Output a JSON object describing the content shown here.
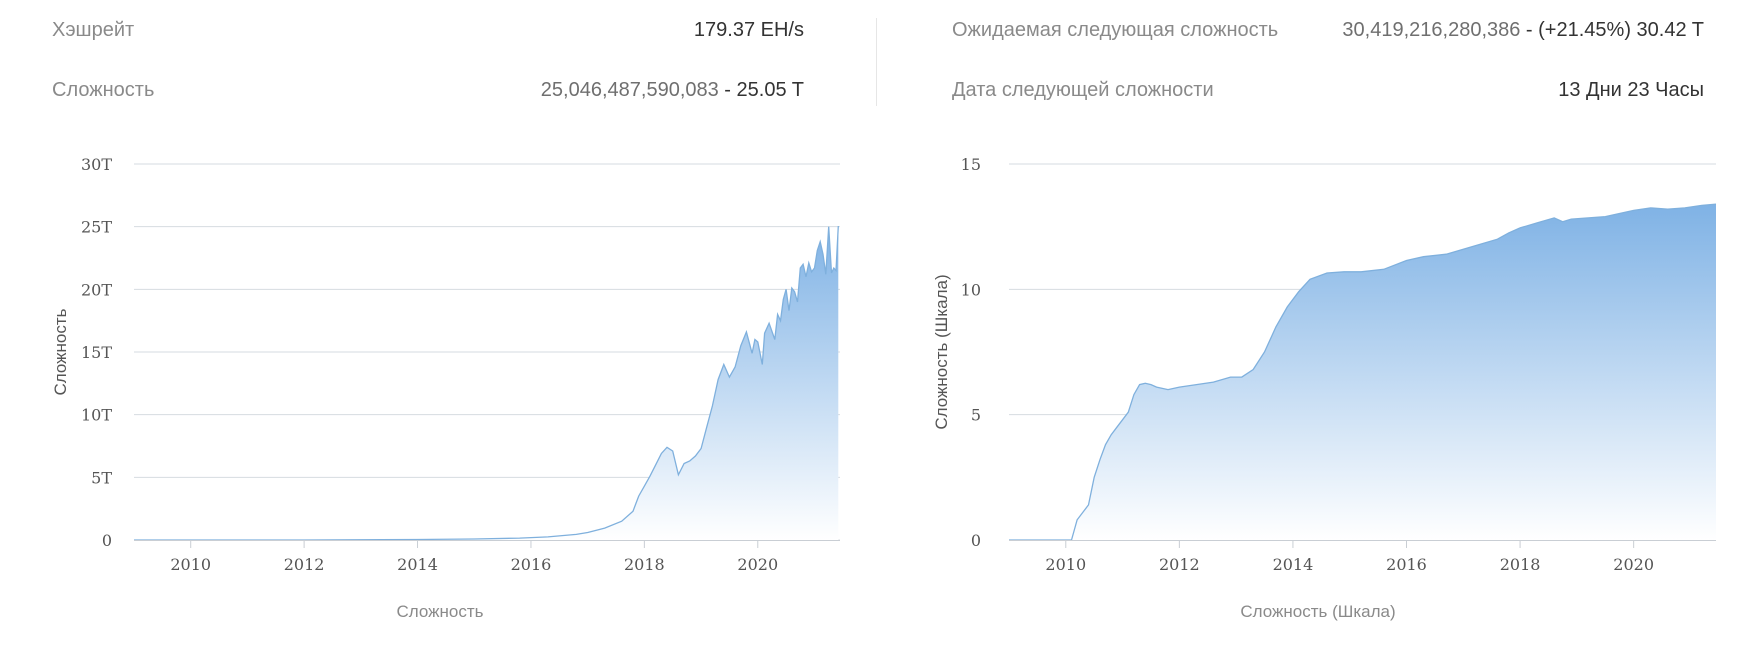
{
  "stats": {
    "hashrate": {
      "label": "Хэшрейт",
      "value": "179.37 EH/s"
    },
    "difficulty": {
      "label": "Сложность",
      "value_num": "25,046,487,590,083",
      "value_sep": " - ",
      "value_short": "25.05 T"
    },
    "next_difficulty": {
      "label": "Ожидаемая следующая сложность",
      "value_num": "30,419,216,280,386",
      "value_rest": " - (+21.45%) 30.42 T"
    },
    "next_date": {
      "label": "Дата следующей сложности",
      "value": "13 Дни 23 Часы"
    }
  },
  "colors": {
    "line": "#7fb0dd",
    "fill_top": "#7fb2e5",
    "fill_bottom": "#ffffff",
    "grid": "#d6dbe1"
  },
  "chart_data": [
    {
      "type": "area",
      "xlabel": "Сложность",
      "ylabel": "Сложность",
      "xlim": [
        2009.0,
        2021.45
      ],
      "ylim": [
        0,
        30
      ],
      "x_ticks": [
        "2010",
        "2012",
        "2014",
        "2016",
        "2018",
        "2020"
      ],
      "y_ticks": [
        "0",
        "5T",
        "10T",
        "15T",
        "20T",
        "25T",
        "30T"
      ],
      "grid": true,
      "x": [
        2009.0,
        2012.0,
        2014.0,
        2015.0,
        2015.8,
        2016.3,
        2016.8,
        2017.0,
        2017.3,
        2017.6,
        2017.8,
        2017.9,
        2018.0,
        2018.1,
        2018.2,
        2018.3,
        2018.4,
        2018.5,
        2018.6,
        2018.7,
        2018.8,
        2018.9,
        2019.0,
        2019.1,
        2019.2,
        2019.3,
        2019.4,
        2019.5,
        2019.6,
        2019.7,
        2019.8,
        2019.9,
        2019.95,
        2020.0,
        2020.08,
        2020.12,
        2020.2,
        2020.3,
        2020.35,
        2020.4,
        2020.45,
        2020.5,
        2020.55,
        2020.6,
        2020.65,
        2020.7,
        2020.75,
        2020.8,
        2020.85,
        2020.9,
        2020.95,
        2021.0,
        2021.05,
        2021.1,
        2021.15,
        2021.2,
        2021.25,
        2021.3,
        2021.34,
        2021.38,
        2021.42
      ],
      "y": [
        0.0,
        0.0,
        0.04,
        0.08,
        0.15,
        0.25,
        0.45,
        0.6,
        0.95,
        1.5,
        2.3,
        3.5,
        4.3,
        5.1,
        6.0,
        6.9,
        7.4,
        7.1,
        5.2,
        6.1,
        6.3,
        6.7,
        7.3,
        9.0,
        10.7,
        12.8,
        14.0,
        13.0,
        13.8,
        15.5,
        16.6,
        14.9,
        16.0,
        15.8,
        14.0,
        16.5,
        17.3,
        16.0,
        18.0,
        17.5,
        19.2,
        20.0,
        18.3,
        20.1,
        19.8,
        19.0,
        21.7,
        22.0,
        21.0,
        22.1,
        21.4,
        21.7,
        23.1,
        23.8,
        22.8,
        21.2,
        25.0,
        21.3,
        21.7,
        21.5,
        25.05
      ]
    },
    {
      "type": "area",
      "xlabel": "Сложность (Шкала)",
      "ylabel": "Сложность (Шкала)",
      "xlim": [
        2009.0,
        2021.45
      ],
      "ylim": [
        0,
        15
      ],
      "x_ticks": [
        "2010",
        "2012",
        "2014",
        "2016",
        "2018",
        "2020"
      ],
      "y_ticks": [
        "0",
        "5",
        "10",
        "15"
      ],
      "grid": true,
      "x": [
        2009.0,
        2010.1,
        2010.15,
        2010.2,
        2010.3,
        2010.4,
        2010.5,
        2010.6,
        2010.7,
        2010.8,
        2010.9,
        2011.0,
        2011.1,
        2011.2,
        2011.3,
        2011.4,
        2011.5,
        2011.6,
        2011.8,
        2012.0,
        2012.3,
        2012.6,
        2012.9,
        2013.1,
        2013.3,
        2013.5,
        2013.7,
        2013.9,
        2014.1,
        2014.3,
        2014.6,
        2014.9,
        2015.2,
        2015.6,
        2016.0,
        2016.3,
        2016.7,
        2017.0,
        2017.3,
        2017.6,
        2017.8,
        2018.0,
        2018.3,
        2018.6,
        2018.75,
        2018.9,
        2019.2,
        2019.5,
        2019.8,
        2020.0,
        2020.3,
        2020.6,
        2020.9,
        2021.2,
        2021.45
      ],
      "y": [
        0.0,
        0.0,
        0.4,
        0.8,
        1.1,
        1.4,
        2.5,
        3.2,
        3.8,
        4.2,
        4.5,
        4.8,
        5.1,
        5.8,
        6.2,
        6.25,
        6.2,
        6.1,
        6.0,
        6.1,
        6.2,
        6.3,
        6.5,
        6.5,
        6.8,
        7.5,
        8.5,
        9.3,
        9.9,
        10.4,
        10.65,
        10.7,
        10.7,
        10.8,
        11.15,
        11.3,
        11.4,
        11.6,
        11.8,
        12.0,
        12.25,
        12.45,
        12.65,
        12.85,
        12.7,
        12.8,
        12.85,
        12.9,
        13.05,
        13.15,
        13.25,
        13.2,
        13.25,
        13.35,
        13.4
      ]
    }
  ]
}
